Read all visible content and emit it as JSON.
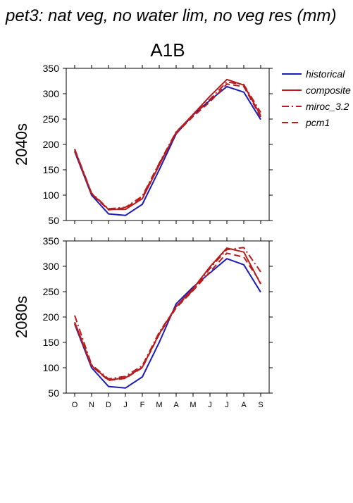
{
  "figure": {
    "title": "pet3: nat veg, no water lim, no veg res (mm)",
    "scenario_label": "A1B"
  },
  "legend": {
    "entries": [
      {
        "name": "historical",
        "color": "#1c1cb8",
        "dash": "solid"
      },
      {
        "name": "composite",
        "color": "#b81c1c",
        "dash": "solid"
      },
      {
        "name": "miroc_3.2",
        "color": "#b81c1c",
        "dash": "dashdot"
      },
      {
        "name": "pcm1",
        "color": "#b81c1c",
        "dash": "dashed"
      }
    ]
  },
  "chart_data": [
    {
      "type": "line",
      "panel_label": "2040s",
      "categories": [
        "O",
        "N",
        "D",
        "J",
        "F",
        "M",
        "A",
        "M",
        "J",
        "J",
        "A",
        "S"
      ],
      "ylim": [
        50,
        350
      ],
      "yticks": [
        50,
        100,
        150,
        200,
        250,
        300,
        350
      ],
      "show_xtick_labels": false,
      "series": [
        {
          "name": "historical",
          "color": "#1c1cb8",
          "dash": "solid",
          "values": [
            186,
            100,
            63,
            60,
            82,
            150,
            221,
            258,
            287,
            314,
            303,
            249
          ]
        },
        {
          "name": "composite",
          "color": "#b81c1c",
          "dash": "solid",
          "values": [
            190,
            103,
            72,
            72,
            93,
            159,
            224,
            259,
            295,
            328,
            317,
            257
          ]
        },
        {
          "name": "miroc_3.2",
          "color": "#b81c1c",
          "dash": "dashdot",
          "values": [
            191,
            104,
            73,
            76,
            98,
            163,
            225,
            257,
            289,
            323,
            318,
            263
          ]
        },
        {
          "name": "pcm1",
          "color": "#b81c1c",
          "dash": "dashed",
          "values": [
            188,
            102,
            71,
            75,
            96,
            162,
            222,
            255,
            284,
            319,
            314,
            254
          ]
        }
      ]
    },
    {
      "type": "line",
      "panel_label": "2080s",
      "categories": [
        "O",
        "N",
        "D",
        "J",
        "F",
        "M",
        "A",
        "M",
        "J",
        "J",
        "A",
        "S"
      ],
      "ylim": [
        50,
        350
      ],
      "yticks": [
        50,
        100,
        150,
        200,
        250,
        300,
        350
      ],
      "show_xtick_labels": true,
      "series": [
        {
          "name": "historical",
          "color": "#1c1cb8",
          "dash": "solid",
          "values": [
            186,
            100,
            63,
            60,
            82,
            150,
            226,
            259,
            287,
            315,
            303,
            249
          ]
        },
        {
          "name": "composite",
          "color": "#b81c1c",
          "dash": "solid",
          "values": [
            190,
            104,
            76,
            80,
            101,
            167,
            221,
            256,
            299,
            336,
            328,
            265
          ]
        },
        {
          "name": "miroc_3.2",
          "color": "#b81c1c",
          "dash": "dashdot",
          "values": [
            203,
            106,
            78,
            83,
            104,
            170,
            220,
            253,
            296,
            333,
            337,
            289
          ]
        },
        {
          "name": "pcm1",
          "color": "#b81c1c",
          "dash": "dashed",
          "values": [
            188,
            103,
            75,
            79,
            100,
            166,
            218,
            252,
            289,
            326,
            318,
            268
          ]
        }
      ]
    }
  ]
}
